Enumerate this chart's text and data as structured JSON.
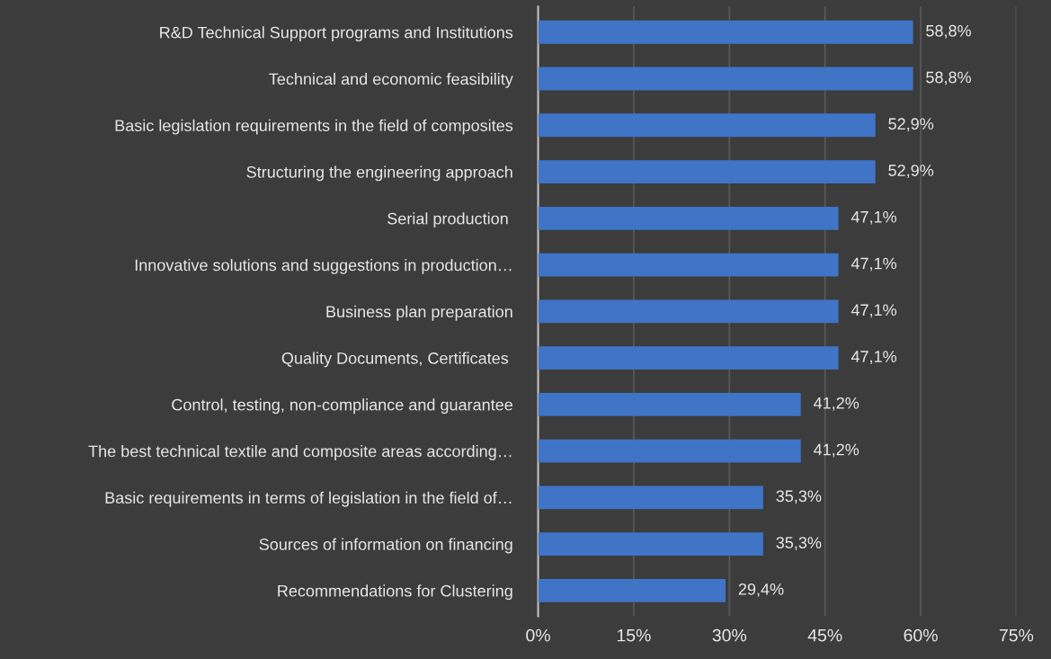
{
  "chart_data": {
    "type": "bar",
    "orientation": "horizontal",
    "categories": [
      "R&D Technical Support programs and Institutions",
      "Technical and economic feasibility",
      "Basic legislation requirements in the field of composites",
      "Structuring the engineering approach",
      "Serial production ",
      "Innovative solutions and suggestions in production…",
      "Business plan preparation",
      "Quality Documents, Certificates ",
      "Control, testing, non-compliance and guarantee",
      "The best technical textile and composite areas according…",
      "Basic requirements in terms of legislation in the field of…",
      "Sources of information on financing",
      "Recommendations for Clustering"
    ],
    "values": [
      58.8,
      58.8,
      52.9,
      52.9,
      47.1,
      47.1,
      47.1,
      47.1,
      41.2,
      41.2,
      35.3,
      35.3,
      29.4
    ],
    "value_labels": [
      "58,8%",
      "58,8%",
      "52,9%",
      "52,9%",
      "47,1%",
      "47,1%",
      "47,1%",
      "47,1%",
      "41,2%",
      "41,2%",
      "35,3%",
      "35,3%",
      "29,4%"
    ],
    "color": "#3f74c6",
    "xlim": [
      0,
      75
    ],
    "xticks": [
      {
        "value": 0,
        "label": "0%"
      },
      {
        "value": 15,
        "label": "15%"
      },
      {
        "value": 30,
        "label": "30%"
      },
      {
        "value": 45,
        "label": "45%"
      },
      {
        "value": 60,
        "label": "60%"
      },
      {
        "value": 75,
        "label": "75%"
      }
    ],
    "grid": "x"
  }
}
